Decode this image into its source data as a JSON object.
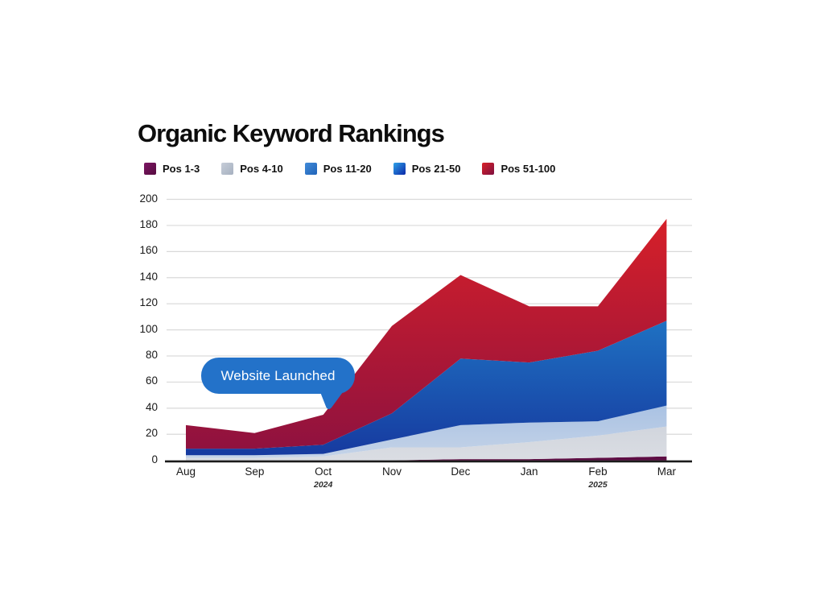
{
  "header": {
    "title": "Organic Keyword Rankings"
  },
  "annotation": {
    "label": "Website Launched",
    "color": "#2372C9",
    "text_color": "#ffffff"
  },
  "axis_colors": {
    "gridline": "#d9d9d9",
    "axis_line": "#1b1b1b",
    "label": "#191919"
  },
  "chart_data": {
    "type": "area",
    "stacked": true,
    "title": "Organic Keyword Rankings",
    "categories": [
      "Aug",
      "Sep",
      "Oct",
      "Nov",
      "Dec",
      "Jan",
      "Feb",
      "Mar"
    ],
    "x_sublabels": [
      {
        "index": 2,
        "label": "2024"
      },
      {
        "index": 6,
        "label": "2025"
      }
    ],
    "y_ticks": [
      0,
      20,
      40,
      60,
      80,
      100,
      120,
      140,
      160,
      180,
      200
    ],
    "ylim": [
      0,
      200
    ],
    "grid": "horizontal",
    "legend_position": "top",
    "series": [
      {
        "name": "Pos 1-3",
        "values": [
          0,
          0,
          0,
          0,
          1,
          1,
          2,
          3
        ],
        "fill_top": "#7D1158",
        "fill_bottom": "#5E0D44",
        "swatch_from": "#7C1663",
        "swatch_to": "#560C40"
      },
      {
        "name": "Pos 4-10",
        "values": [
          2,
          2,
          3,
          10,
          9,
          13,
          17,
          23
        ],
        "fill_top": "#97A3B4",
        "fill_bottom": "#DADDE3",
        "swatch_from": "#C6CDD8",
        "swatch_to": "#A6B0C0"
      },
      {
        "name": "Pos 11-20",
        "values": [
          2,
          2,
          2,
          6,
          17,
          15,
          11,
          16
        ],
        "fill_top": "#3F7FD0",
        "fill_bottom": "#C6D4E8",
        "swatch_from": "#418BD8",
        "swatch_to": "#2063B8"
      },
      {
        "name": "Pos 21-50",
        "values": [
          5,
          5,
          7,
          20,
          51,
          46,
          54,
          65
        ],
        "fill_top": "#27A3E2",
        "fill_bottom": "#16389E",
        "swatch_from": "#2FA2E8",
        "swatch_to": "#0A28A8"
      },
      {
        "name": "Pos 51-100",
        "values": [
          18,
          12,
          23,
          67,
          64,
          43,
          34,
          78
        ],
        "fill_top": "#DC2127",
        "fill_bottom": "#8C1140",
        "swatch_from": "#D92127",
        "swatch_to": "#7E1040"
      }
    ],
    "stacked_totals": [
      27,
      21,
      35,
      103,
      142,
      118,
      118,
      185
    ]
  }
}
